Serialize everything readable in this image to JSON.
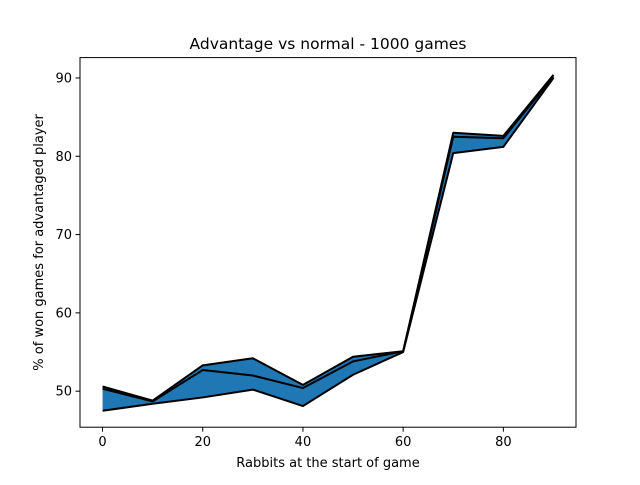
{
  "chart_data": {
    "type": "area",
    "title": "Advantage vs normal  - 1000 games",
    "xlabel": "Rabbits at the start of game",
    "ylabel": "% of won games for advantaged player",
    "xlim": [
      -4.5,
      94.5
    ],
    "ylim": [
      45.4,
      92.6
    ],
    "x_ticks": [
      0,
      20,
      40,
      60,
      80
    ],
    "y_ticks": [
      50,
      60,
      70,
      80,
      90
    ],
    "grid": false,
    "x": [
      0,
      10,
      20,
      30,
      40,
      50,
      60,
      70,
      80,
      90
    ],
    "series": [
      {
        "values": [
          50.6,
          48.8,
          53.3,
          54.2,
          50.8,
          54.4,
          55.1,
          83.0,
          82.6,
          90.4
        ]
      },
      {
        "values": [
          50.3,
          48.7,
          52.7,
          52.0,
          50.4,
          53.8,
          55.1,
          82.5,
          82.3,
          90.2
        ]
      },
      {
        "values": [
          47.5,
          48.4,
          49.2,
          50.2,
          48.1,
          52.1,
          55.0,
          80.4,
          81.2,
          90.0
        ]
      }
    ],
    "fill": {
      "between": [
        0,
        2
      ],
      "color": "#1f77b4"
    },
    "line_color": "#000000"
  }
}
